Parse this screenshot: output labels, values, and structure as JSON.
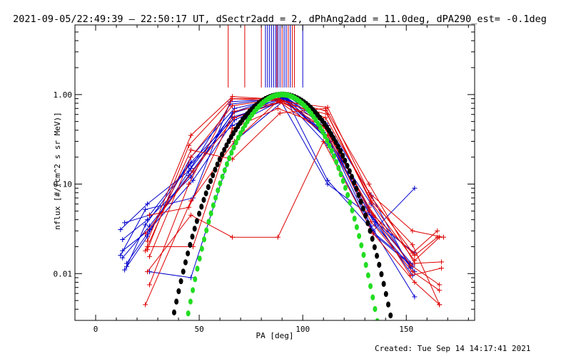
{
  "chart_data": {
    "type": "line",
    "title": "2021-09-05/22:49:39 – 22:50:17 UT, dSectr2add = 2, dPhAng2add = 11.0deg, dPA290_est= -0.1deg",
    "xlabel": "PA [deg]",
    "ylabel": "nflux [#/(cm^2 s sr MeV)]",
    "footer": "Created: Tue Sep 14 14:17:41 2021",
    "xlim": [
      -10,
      183
    ],
    "ylim": [
      0.003,
      6
    ],
    "yscale": "log",
    "x_ticks": [
      0,
      50,
      100,
      150
    ],
    "x_tick_labels": [
      "0",
      "50",
      "100",
      "150"
    ],
    "y_ticks": [
      0.01,
      0.1,
      1.0
    ],
    "y_tick_labels": [
      "0.01",
      "0.10",
      "1.00"
    ],
    "colors": {
      "blue": "#0000cc",
      "red": "#dd0000",
      "black": "#000000",
      "green": "#22dd22"
    },
    "top_markers": {
      "y_range": [
        1.2,
        6
      ],
      "blue_x": [
        82,
        83,
        84,
        85,
        86,
        87,
        88,
        89,
        91,
        92,
        94,
        100
      ],
      "red_x": [
        64,
        72,
        80,
        87.5,
        90,
        93,
        95,
        96
      ]
    },
    "series": [
      {
        "color": "blue",
        "x": [
          12,
          25,
          45,
          65,
          92,
          112,
          133,
          152
        ],
        "y": [
          0.031,
          0.06,
          0.14,
          0.78,
          0.93,
          0.45,
          0.075,
          0.0115
        ]
      },
      {
        "color": "blue",
        "x": [
          14,
          26,
          46,
          67,
          91,
          112,
          133,
          154
        ],
        "y": [
          0.037,
          0.045,
          0.175,
          0.55,
          0.96,
          0.41,
          0.034,
          0.0055
        ]
      },
      {
        "color": "blue",
        "x": [
          13,
          25,
          46,
          66,
          90,
          110,
          132,
          153
        ],
        "y": [
          0.024,
          0.04,
          0.12,
          0.62,
          0.9,
          0.38,
          0.048,
          0.0095
        ]
      },
      {
        "color": "blue",
        "x": [
          15,
          24,
          45,
          66,
          92,
          113,
          134,
          152
        ],
        "y": [
          0.012,
          0.035,
          0.16,
          0.45,
          0.92,
          0.3,
          0.029,
          0.013
        ]
      },
      {
        "color": "blue",
        "x": [
          13,
          26,
          47,
          67,
          89,
          112,
          134,
          153
        ],
        "y": [
          0.018,
          0.031,
          0.11,
          0.52,
          0.88,
          0.1,
          0.042,
          0.0125
        ]
      },
      {
        "color": "blue",
        "x": [
          14,
          25,
          46,
          67,
          93,
          111,
          135,
          154
        ],
        "y": [
          0.011,
          0.026,
          0.2,
          0.7,
          0.95,
          0.48,
          0.038,
          0.017
        ]
      },
      {
        "color": "blue",
        "x": [
          12,
          24,
          47,
          65,
          91,
          113,
          133,
          152
        ],
        "y": [
          0.016,
          0.052,
          0.07,
          0.83,
          0.91,
          0.3,
          0.06,
          0.012
        ]
      },
      {
        "color": "blue",
        "x": [
          15,
          25,
          46,
          67,
          90,
          112,
          135,
          154
        ],
        "y": [
          0.013,
          0.028,
          0.15,
          0.64,
          0.98,
          0.35,
          0.035,
          0.0105
        ]
      },
      {
        "color": "blue",
        "x": [
          26,
          46,
          67,
          92,
          112,
          134,
          154
        ],
        "y": [
          0.0105,
          0.009,
          0.3,
          0.9,
          0.11,
          0.03,
          0.09
        ]
      },
      {
        "color": "blue",
        "x": [
          13,
          26,
          45,
          66,
          92,
          112,
          134,
          153
        ],
        "y": [
          0.015,
          0.034,
          0.125,
          0.56,
          0.85,
          0.27,
          0.028,
          0.012
        ]
      },
      {
        "color": "red",
        "x": [
          25,
          46,
          66,
          89,
          111,
          132,
          153,
          168
        ],
        "y": [
          0.023,
          0.35,
          0.95,
          0.88,
          0.55,
          0.08,
          0.03,
          0.0255
        ]
      },
      {
        "color": "red",
        "x": [
          25,
          45,
          66,
          88,
          112,
          133,
          154,
          165
        ],
        "y": [
          0.0185,
          0.27,
          0.9,
          0.85,
          0.72,
          0.072,
          0.016,
          0.0255
        ]
      },
      {
        "color": "red",
        "x": [
          26,
          46,
          66,
          88,
          111,
          133,
          154,
          166
        ],
        "y": [
          0.0155,
          0.2,
          0.75,
          0.89,
          0.66,
          0.062,
          0.014,
          0.0255
        ]
      },
      {
        "color": "red",
        "x": [
          24,
          47,
          67,
          89,
          110,
          132,
          153,
          165
        ],
        "y": [
          0.028,
          0.14,
          0.55,
          0.83,
          0.5,
          0.05,
          0.017,
          0.03
        ]
      },
      {
        "color": "red",
        "x": [
          26,
          45,
          66,
          88,
          111,
          134,
          152,
          167
        ],
        "y": [
          0.0075,
          0.1,
          0.9,
          0.9,
          0.42,
          0.045,
          0.0095,
          0.0115
        ]
      },
      {
        "color": "red",
        "x": [
          24,
          46,
          67,
          88,
          112,
          133,
          153,
          166
        ],
        "y": [
          0.0045,
          0.065,
          0.3,
          0.85,
          0.35,
          0.038,
          0.0105,
          0.0065
        ]
      },
      {
        "color": "red",
        "x": [
          25,
          46,
          66,
          88,
          110,
          134,
          154,
          166
        ],
        "y": [
          0.0105,
          0.045,
          0.0255,
          0.0255,
          0.3,
          0.028,
          0.008,
          0.0045
        ]
      },
      {
        "color": "red",
        "x": [
          24,
          46,
          66,
          89,
          111,
          132,
          154,
          167
        ],
        "y": [
          0.018,
          0.24,
          0.19,
          0.62,
          0.7,
          0.1,
          0.013,
          0.0135
        ]
      },
      {
        "color": "red",
        "x": [
          26,
          45,
          67,
          89,
          112,
          133,
          153,
          166
        ],
        "y": [
          0.045,
          0.055,
          0.65,
          0.82,
          0.6,
          0.065,
          0.021,
          0.0045
        ]
      },
      {
        "color": "red",
        "x": [
          25,
          47,
          66,
          88,
          110,
          132,
          152,
          166
        ],
        "y": [
          0.02,
          0.02,
          0.42,
          0.7,
          0.45,
          0.055,
          0.0125,
          0.0075
        ]
      }
    ],
    "fit_curves": [
      {
        "color": "black",
        "formula": "sin^n(PA)",
        "n": 11.5,
        "x_range": [
          28,
          148
        ]
      },
      {
        "color": "green",
        "formula": "sin^n(PA)",
        "n": 16,
        "x_range": [
          26,
          148
        ]
      }
    ]
  }
}
